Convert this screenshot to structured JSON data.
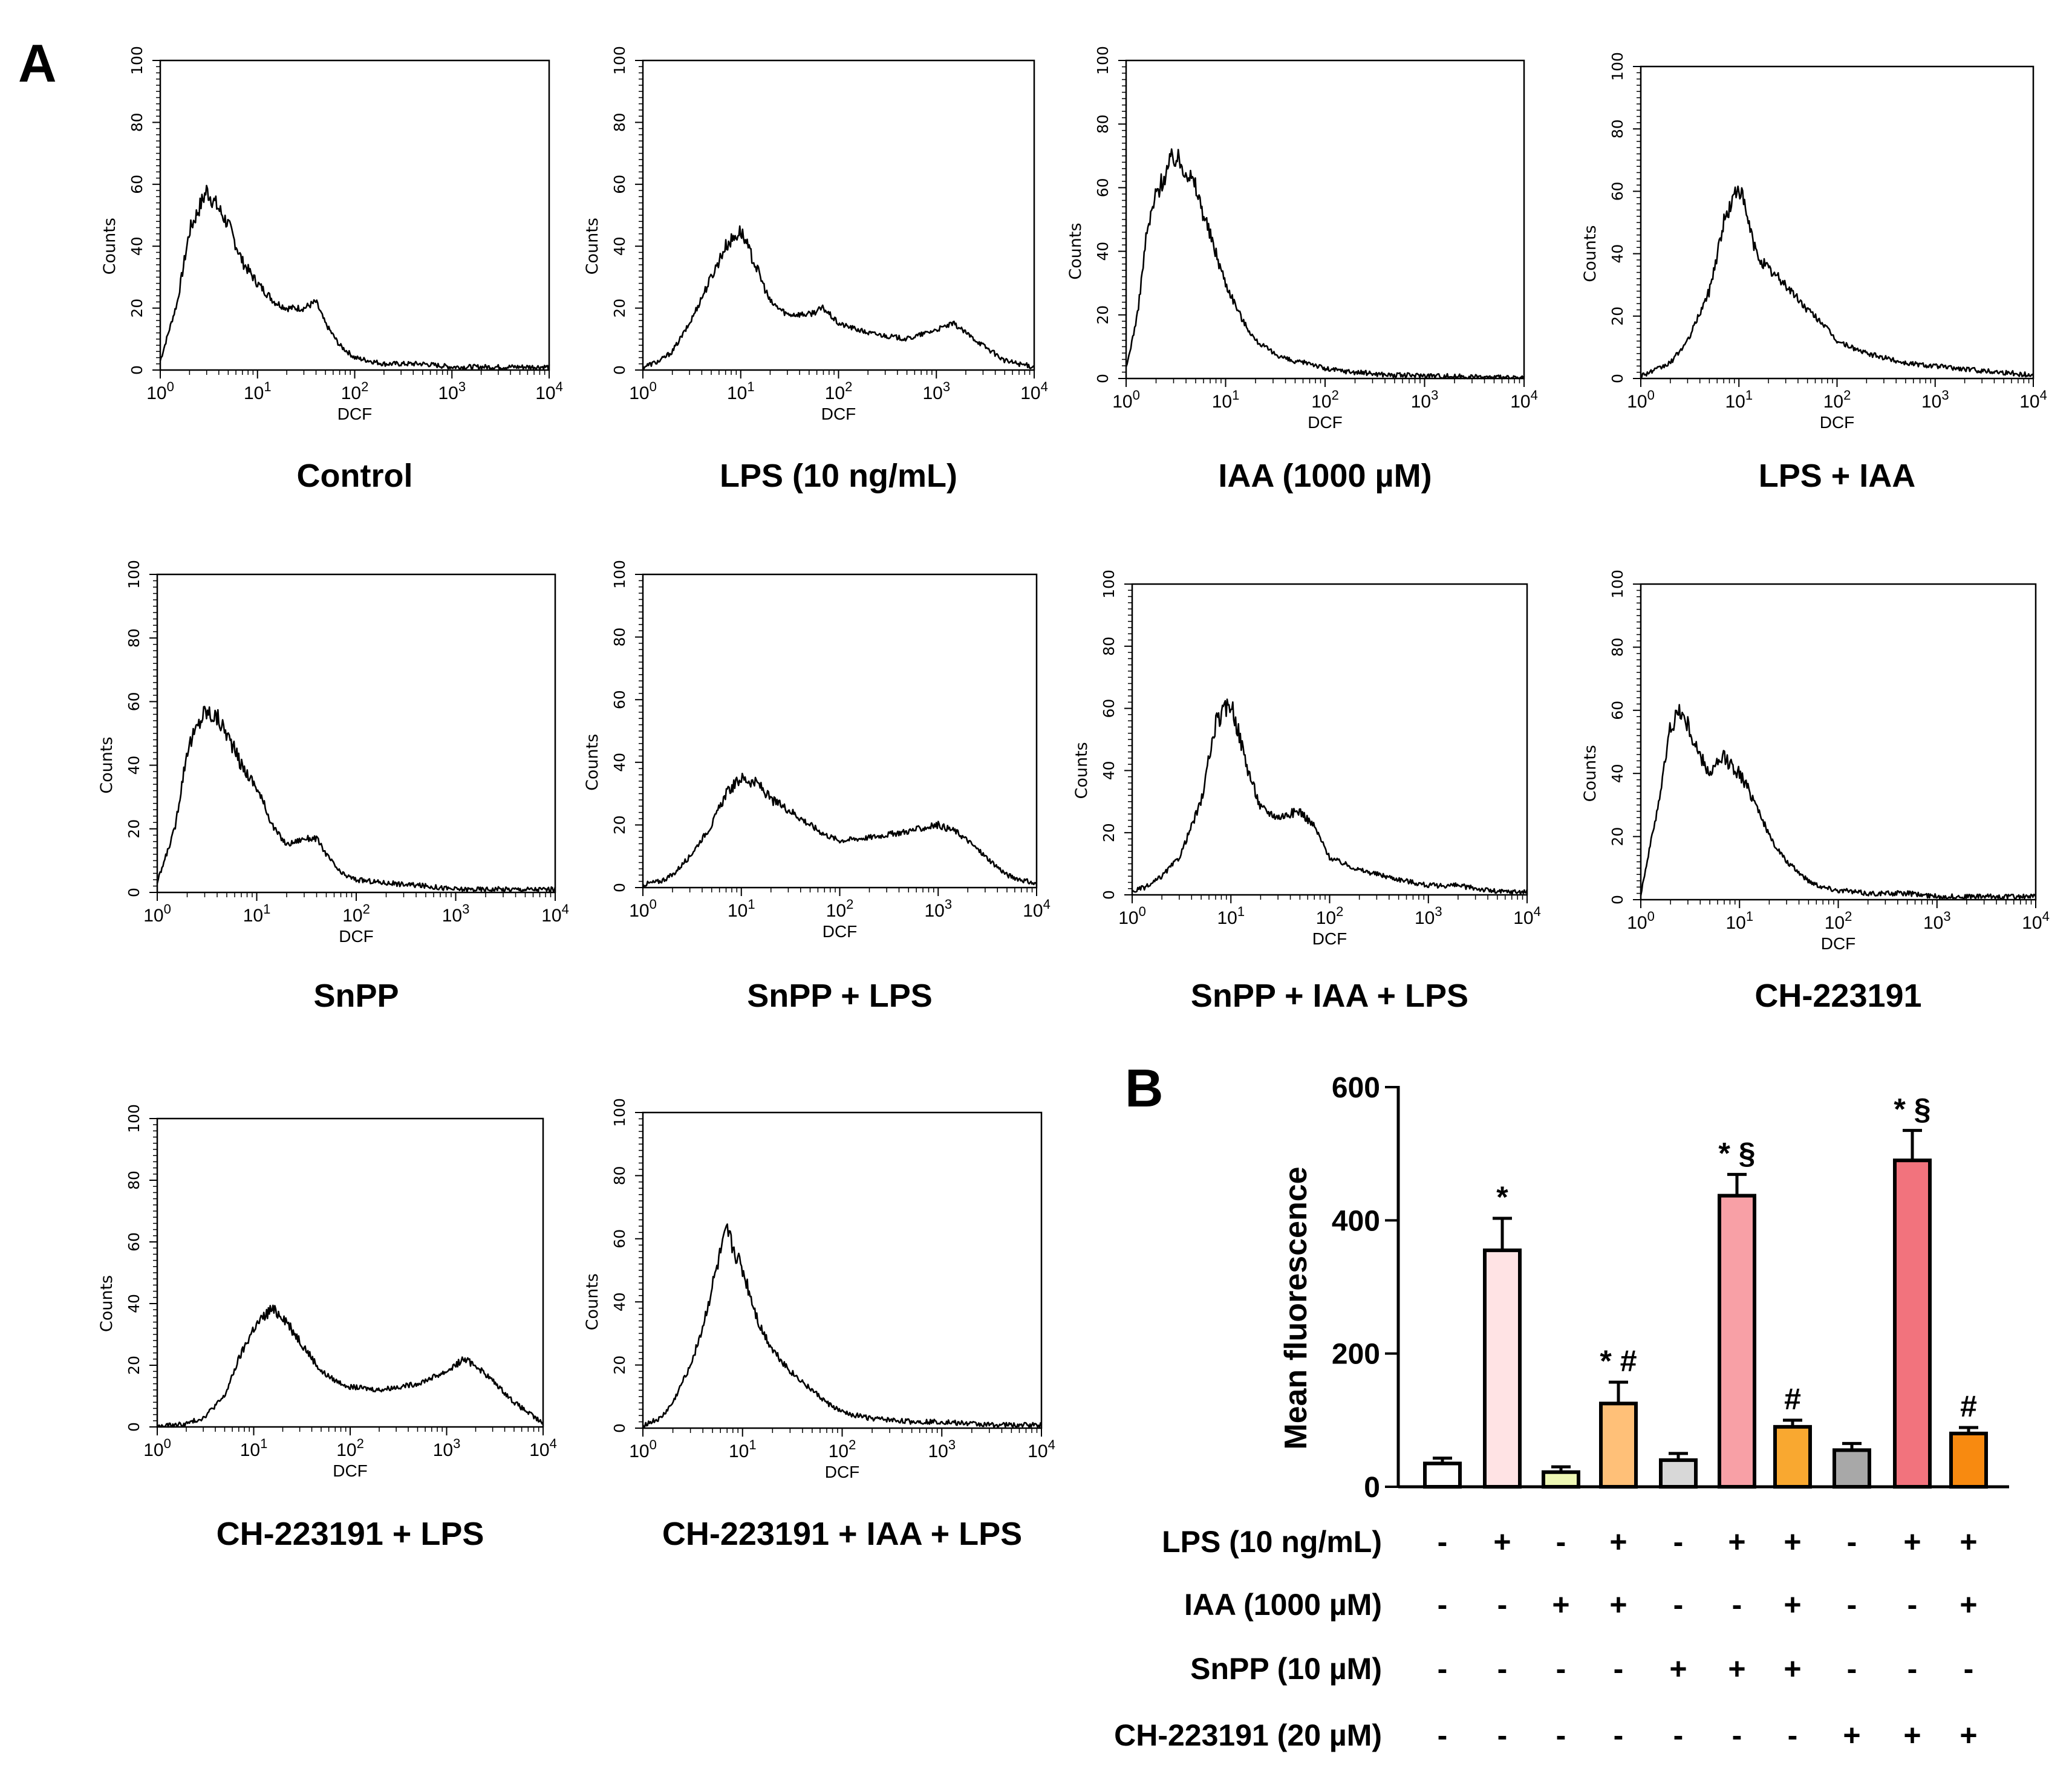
{
  "figure": {
    "panel_a_letter": "A",
    "panel_b_letter": "B"
  },
  "chart_data": [
    {
      "type": "line",
      "panel": "A",
      "title": "Control",
      "xlabel": "DCF",
      "ylabel": "Counts",
      "xscale": "log",
      "xlim": [
        1,
        10000
      ],
      "ylim": [
        0,
        100
      ],
      "x_ticks": [
        "10^0",
        "10^1",
        "10^2",
        "10^3",
        "10^4"
      ],
      "y_ticks": [
        "0",
        "20",
        "40",
        "60",
        "80",
        "100"
      ],
      "series": [
        {
          "name": "Control",
          "x": [
            1,
            1.5,
            2,
            3,
            4,
            5,
            7,
            10,
            15,
            20,
            30,
            40,
            50,
            70,
            100,
            200,
            500,
            1000,
            3000,
            10000
          ],
          "y": [
            3,
            22,
            45,
            58,
            52,
            47,
            35,
            28,
            22,
            20,
            20,
            22,
            15,
            8,
            4,
            2,
            2,
            1,
            1,
            1
          ]
        }
      ]
    },
    {
      "type": "line",
      "panel": "A",
      "title": "LPS (10 ng/mL)",
      "xlabel": "DCF",
      "ylabel": "Counts",
      "xscale": "log",
      "xlim": [
        1,
        10000
      ],
      "ylim": [
        0,
        100
      ],
      "x_ticks": [
        "10^0",
        "10^1",
        "10^2",
        "10^3",
        "10^4"
      ],
      "y_ticks": [
        "0",
        "20",
        "40",
        "60",
        "80",
        "100"
      ],
      "series": [
        {
          "name": "LPS (10 ng/mL)",
          "x": [
            1,
            1.5,
            2,
            3,
            5,
            7,
            10,
            15,
            20,
            30,
            50,
            70,
            100,
            200,
            500,
            1000,
            1500,
            2000,
            3000,
            5000,
            10000
          ],
          "y": [
            1,
            3,
            6,
            15,
            30,
            40,
            45,
            32,
            22,
            18,
            18,
            20,
            15,
            12,
            10,
            13,
            15,
            12,
            8,
            3,
            1
          ]
        }
      ]
    },
    {
      "type": "line",
      "panel": "A",
      "title": "IAA (1000 µM)",
      "xlabel": "DCF",
      "ylabel": "Counts",
      "xscale": "log",
      "xlim": [
        1,
        10000
      ],
      "ylim": [
        0,
        100
      ],
      "x_ticks": [
        "10^0",
        "10^1",
        "10^2",
        "10^3",
        "10^4"
      ],
      "y_ticks": [
        "0",
        "20",
        "40",
        "60",
        "80",
        "100"
      ],
      "series": [
        {
          "name": "IAA (1000 µM)",
          "x": [
            1,
            1.3,
            1.6,
            2,
            3,
            4,
            5,
            7,
            10,
            15,
            20,
            30,
            50,
            70,
            100,
            200,
            500,
            1000,
            10000
          ],
          "y": [
            3,
            20,
            45,
            58,
            70,
            66,
            60,
            45,
            30,
            18,
            12,
            8,
            5,
            5,
            3,
            2,
            1,
            1,
            0
          ]
        }
      ]
    },
    {
      "type": "line",
      "panel": "A",
      "title": "LPS + IAA",
      "xlabel": "DCF",
      "ylabel": "Counts",
      "xscale": "log",
      "xlim": [
        1,
        10000
      ],
      "ylim": [
        0,
        100
      ],
      "x_ticks": [
        "10^0",
        "10^1",
        "10^2",
        "10^3",
        "10^4"
      ],
      "y_ticks": [
        "0",
        "20",
        "40",
        "60",
        "80",
        "100"
      ],
      "series": [
        {
          "name": "LPS + IAA",
          "x": [
            1,
            1.5,
            2,
            3,
            5,
            7,
            10,
            15,
            20,
            30,
            50,
            70,
            100,
            200,
            500,
            1000,
            2000,
            5000,
            10000
          ],
          "y": [
            1,
            3,
            5,
            12,
            28,
            50,
            62,
            40,
            35,
            30,
            22,
            18,
            12,
            8,
            5,
            4,
            3,
            2,
            1
          ]
        }
      ]
    },
    {
      "type": "line",
      "panel": "A",
      "title": "SnPP",
      "xlabel": "DCF",
      "ylabel": "Counts",
      "xscale": "log",
      "xlim": [
        1,
        10000
      ],
      "ylim": [
        0,
        100
      ],
      "x_ticks": [
        "10^0",
        "10^1",
        "10^2",
        "10^3",
        "10^4"
      ],
      "y_ticks": [
        "0",
        "20",
        "40",
        "60",
        "80",
        "100"
      ],
      "series": [
        {
          "name": "SnPP",
          "x": [
            1,
            1.5,
            2,
            3,
            4,
            5,
            7,
            10,
            15,
            20,
            30,
            40,
            50,
            70,
            100,
            200,
            500,
            1000,
            3000,
            10000
          ],
          "y": [
            3,
            20,
            45,
            57,
            55,
            50,
            40,
            33,
            20,
            15,
            17,
            17,
            12,
            6,
            4,
            3,
            2,
            1,
            1,
            1
          ]
        }
      ]
    },
    {
      "type": "line",
      "panel": "A",
      "title": "SnPP + LPS",
      "xlabel": "DCF",
      "ylabel": "Counts",
      "xscale": "log",
      "xlim": [
        1,
        10000
      ],
      "ylim": [
        0,
        100
      ],
      "x_ticks": [
        "10^0",
        "10^1",
        "10^2",
        "10^3",
        "10^4"
      ],
      "y_ticks": [
        "0",
        "20",
        "40",
        "60",
        "80",
        "100"
      ],
      "series": [
        {
          "name": "SnPP + LPS",
          "x": [
            1,
            1.5,
            2,
            3,
            5,
            7,
            10,
            15,
            20,
            30,
            50,
            70,
            100,
            200,
            500,
            1000,
            1500,
            2000,
            3000,
            5000,
            10000
          ],
          "y": [
            1,
            2,
            4,
            10,
            20,
            30,
            35,
            33,
            28,
            25,
            20,
            17,
            15,
            16,
            18,
            20,
            18,
            15,
            10,
            4,
            1
          ]
        }
      ]
    },
    {
      "type": "line",
      "panel": "A",
      "title": "SnPP + IAA + LPS",
      "xlabel": "DCF",
      "ylabel": "Counts",
      "xscale": "log",
      "xlim": [
        1,
        10000
      ],
      "ylim": [
        0,
        100
      ],
      "x_ticks": [
        "10^0",
        "10^1",
        "10^2",
        "10^3",
        "10^4"
      ],
      "y_ticks": [
        "0",
        "20",
        "40",
        "60",
        "80",
        "100"
      ],
      "series": [
        {
          "name": "SnPP + IAA + LPS",
          "x": [
            1,
            1.5,
            2,
            3,
            5,
            7,
            10,
            15,
            20,
            30,
            50,
            70,
            100,
            200,
            500,
            1000,
            2000,
            5000,
            10000
          ],
          "y": [
            1,
            3,
            6,
            12,
            30,
            55,
            62,
            40,
            28,
            25,
            27,
            22,
            12,
            8,
            5,
            3,
            3,
            1,
            1
          ]
        }
      ]
    },
    {
      "type": "line",
      "panel": "A",
      "title": "CH-223191",
      "xlabel": "DCF",
      "ylabel": "Counts",
      "xscale": "log",
      "xlim": [
        1,
        10000
      ],
      "ylim": [
        0,
        100
      ],
      "x_ticks": [
        "10^0",
        "10^1",
        "10^2",
        "10^3",
        "10^4"
      ],
      "y_ticks": [
        "0",
        "20",
        "40",
        "60",
        "80",
        "100"
      ],
      "series": [
        {
          "name": "CH-223191",
          "x": [
            1,
            1.3,
            1.6,
            2,
            2.5,
            3,
            4,
            5,
            7,
            10,
            15,
            20,
            30,
            50,
            70,
            100,
            200,
            500,
            1000,
            3000,
            10000
          ],
          "y": [
            2,
            20,
            35,
            55,
            60,
            55,
            45,
            40,
            45,
            40,
            30,
            20,
            12,
            6,
            4,
            3,
            2,
            2,
            1,
            1,
            1
          ]
        }
      ]
    },
    {
      "type": "line",
      "panel": "A",
      "title": "CH-223191 + LPS",
      "xlabel": "DCF",
      "ylabel": "Counts",
      "xscale": "log",
      "xlim": [
        1,
        10000
      ],
      "ylim": [
        0,
        100
      ],
      "x_ticks": [
        "10^0",
        "10^1",
        "10^2",
        "10^3",
        "10^4"
      ],
      "y_ticks": [
        "0",
        "20",
        "40",
        "60",
        "80",
        "100"
      ],
      "series": [
        {
          "name": "CH-223191 + LPS",
          "x": [
            1,
            2,
            3,
            5,
            7,
            10,
            15,
            20,
            30,
            50,
            70,
            100,
            200,
            500,
            1000,
            1500,
            2000,
            3000,
            5000,
            10000
          ],
          "y": [
            0,
            1,
            3,
            10,
            22,
            32,
            38,
            36,
            28,
            18,
            15,
            13,
            12,
            14,
            18,
            22,
            20,
            15,
            8,
            1
          ]
        }
      ]
    },
    {
      "type": "line",
      "panel": "A",
      "title": "CH-223191 + IAA + LPS",
      "xlabel": "DCF",
      "ylabel": "Counts",
      "xscale": "log",
      "xlim": [
        1,
        10000
      ],
      "ylim": [
        0,
        100
      ],
      "x_ticks": [
        "10^0",
        "10^1",
        "10^2",
        "10^3",
        "10^4"
      ],
      "y_ticks": [
        "0",
        "20",
        "40",
        "60",
        "80",
        "100"
      ],
      "series": [
        {
          "name": "CH-223191 + IAA + LPS",
          "x": [
            1,
            1.5,
            2,
            3,
            4,
            5,
            6,
            7,
            8,
            10,
            15,
            20,
            30,
            50,
            70,
            100,
            200,
            500,
            1000,
            3000,
            10000
          ],
          "y": [
            1,
            3,
            8,
            20,
            32,
            45,
            55,
            62,
            57,
            50,
            32,
            25,
            18,
            12,
            8,
            5,
            3,
            2,
            2,
            1,
            1
          ]
        }
      ]
    },
    {
      "type": "bar",
      "panel": "B",
      "title": "",
      "xlabel": "",
      "ylabel": "Mean fluorescence",
      "ylim": [
        0,
        600
      ],
      "y_ticks": [
        "0",
        "200",
        "400",
        "600"
      ],
      "values": [
        35,
        355,
        22,
        125,
        40,
        437,
        90,
        55,
        490,
        80
      ],
      "errors": [
        8,
        48,
        8,
        32,
        10,
        32,
        10,
        10,
        45,
        9
      ],
      "colors": [
        "#ffffff",
        "#ffe3e4",
        "#eef7b4",
        "#ffc078",
        "#d8d8d8",
        "#f8a0a6",
        "#f9a830",
        "#a8a8a8",
        "#f2737d",
        "#f88a10"
      ],
      "annotations": [
        "",
        "*",
        "",
        "* #",
        "",
        "* §",
        "#",
        "",
        "* §",
        "#"
      ],
      "conditions": [
        {
          "label": "LPS (10 ng/mL)",
          "marks": [
            "-",
            "+",
            "-",
            "+",
            "-",
            "+",
            "+",
            "-",
            "+",
            "+"
          ]
        },
        {
          "label": "IAA (1000 µM)",
          "marks": [
            "-",
            "-",
            "+",
            "+",
            "-",
            "-",
            "+",
            "-",
            "-",
            "+"
          ]
        },
        {
          "label": "SnPP (10 µM)",
          "marks": [
            "-",
            "-",
            "-",
            "-",
            "+",
            "+",
            "+",
            "-",
            "-",
            "-"
          ]
        },
        {
          "label": "CH-223191 (20 µM)",
          "marks": [
            "-",
            "-",
            "-",
            "-",
            "-",
            "-",
            "-",
            "+",
            "+",
            "+"
          ]
        }
      ]
    }
  ]
}
